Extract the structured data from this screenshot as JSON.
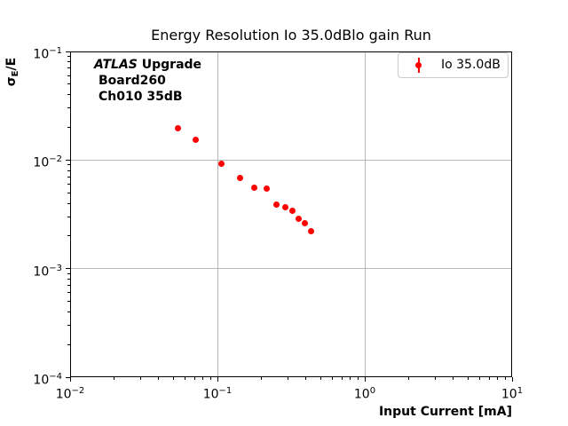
{
  "title": "Energy Resolution Io 35.0dBlo gain Run",
  "axes": {
    "xlabel": "Input Current [mA]",
    "ylabel_sigma": "σ",
    "ylabel_sub": "E",
    "ylabel_rest": "/E",
    "x_tick_exponents": [
      -2,
      -1,
      0,
      1
    ],
    "y_tick_exponents": [
      -1,
      -2,
      -3,
      -4
    ]
  },
  "annotation": {
    "atlas": "ATLAS",
    "upgrade": "Upgrade",
    "line2": "Board260",
    "line3": "Ch010 35dB"
  },
  "legend": {
    "label": "Io 35.0dB"
  },
  "colors": {
    "marker": "#ff0000",
    "grid": "#b8b8b8",
    "spine": "#000000",
    "legend_border": "#cccccc"
  },
  "chart_data": {
    "type": "scatter",
    "title": "Energy Resolution Io 35.0dBlo gain Run",
    "xlabel": "Input Current [mA]",
    "ylabel": "σE/E",
    "xscale": "log",
    "yscale": "log",
    "xlim": [
      0.01,
      10
    ],
    "ylim": [
      0.0001,
      0.1
    ],
    "grid": true,
    "legend_position": "upper right",
    "annotations": [
      "ATLAS Upgrade",
      "Board260",
      "Ch010 35dB"
    ],
    "series": [
      {
        "name": "Io 35.0dB",
        "color": "#ff0000",
        "marker": "circle-with-errorbar",
        "x": [
          0.0536,
          0.0715,
          0.107,
          0.143,
          0.179,
          0.215,
          0.25,
          0.288,
          0.322,
          0.357,
          0.392,
          0.43
        ],
        "y": [
          0.0196,
          0.0155,
          0.0092,
          0.0069,
          0.0056,
          0.0055,
          0.0039,
          0.0037,
          0.0034,
          0.0029,
          0.0026,
          0.0022
        ]
      }
    ]
  }
}
